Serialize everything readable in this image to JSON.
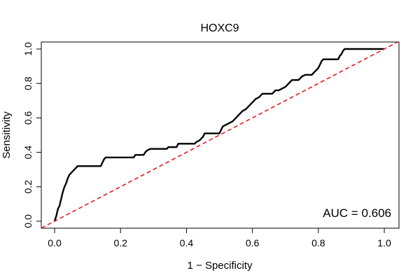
{
  "chart_data": {
    "type": "line",
    "title": "HOXC9",
    "xlabel": "1 − Specificity",
    "ylabel": "Sensitivity",
    "xlim": [
      0,
      1
    ],
    "ylim": [
      0,
      1
    ],
    "x_ticks": [
      {
        "value": 0.0,
        "label": "0.0"
      },
      {
        "value": 0.2,
        "label": "0.2"
      },
      {
        "value": 0.4,
        "label": "0.4"
      },
      {
        "value": 0.6,
        "label": "0.6"
      },
      {
        "value": 0.8,
        "label": "0.8"
      },
      {
        "value": 1.0,
        "label": "1.0"
      }
    ],
    "y_ticks": [
      {
        "value": 0.0,
        "label": "0.0"
      },
      {
        "value": 0.2,
        "label": "0.2"
      },
      {
        "value": 0.4,
        "label": "0.4"
      },
      {
        "value": 0.6,
        "label": "0.6"
      },
      {
        "value": 0.8,
        "label": "0.8"
      },
      {
        "value": 1.0,
        "label": "1.0"
      }
    ],
    "grid": false,
    "annotation": "AUC = 0.606",
    "series": [
      {
        "color": "#000000",
        "style": "solid",
        "points": [
          [
            0.0,
            0.0
          ],
          [
            0.005,
            0.03
          ],
          [
            0.01,
            0.07
          ],
          [
            0.015,
            0.09
          ],
          [
            0.02,
            0.13
          ],
          [
            0.025,
            0.17
          ],
          [
            0.03,
            0.2
          ],
          [
            0.035,
            0.22
          ],
          [
            0.04,
            0.25
          ],
          [
            0.045,
            0.27
          ],
          [
            0.05,
            0.28
          ],
          [
            0.055,
            0.29
          ],
          [
            0.06,
            0.3
          ],
          [
            0.065,
            0.31
          ],
          [
            0.07,
            0.32
          ],
          [
            0.14,
            0.32
          ],
          [
            0.145,
            0.34
          ],
          [
            0.15,
            0.36
          ],
          [
            0.155,
            0.37
          ],
          [
            0.24,
            0.37
          ],
          [
            0.245,
            0.385
          ],
          [
            0.27,
            0.385
          ],
          [
            0.275,
            0.4
          ],
          [
            0.28,
            0.41
          ],
          [
            0.29,
            0.42
          ],
          [
            0.34,
            0.42
          ],
          [
            0.345,
            0.43
          ],
          [
            0.37,
            0.43
          ],
          [
            0.375,
            0.45
          ],
          [
            0.425,
            0.45
          ],
          [
            0.43,
            0.46
          ],
          [
            0.44,
            0.47
          ],
          [
            0.445,
            0.48
          ],
          [
            0.45,
            0.49
          ],
          [
            0.455,
            0.51
          ],
          [
            0.5,
            0.51
          ],
          [
            0.505,
            0.53
          ],
          [
            0.51,
            0.55
          ],
          [
            0.52,
            0.56
          ],
          [
            0.53,
            0.57
          ],
          [
            0.54,
            0.58
          ],
          [
            0.55,
            0.6
          ],
          [
            0.56,
            0.62
          ],
          [
            0.565,
            0.63
          ],
          [
            0.57,
            0.64
          ],
          [
            0.58,
            0.65
          ],
          [
            0.585,
            0.66
          ],
          [
            0.59,
            0.67
          ],
          [
            0.595,
            0.68
          ],
          [
            0.6,
            0.69
          ],
          [
            0.605,
            0.7
          ],
          [
            0.61,
            0.71
          ],
          [
            0.62,
            0.72
          ],
          [
            0.625,
            0.73
          ],
          [
            0.63,
            0.74
          ],
          [
            0.66,
            0.74
          ],
          [
            0.665,
            0.75
          ],
          [
            0.67,
            0.76
          ],
          [
            0.68,
            0.76
          ],
          [
            0.69,
            0.77
          ],
          [
            0.7,
            0.78
          ],
          [
            0.705,
            0.79
          ],
          [
            0.71,
            0.8
          ],
          [
            0.715,
            0.81
          ],
          [
            0.72,
            0.82
          ],
          [
            0.74,
            0.82
          ],
          [
            0.745,
            0.83
          ],
          [
            0.75,
            0.84
          ],
          [
            0.76,
            0.85
          ],
          [
            0.78,
            0.85
          ],
          [
            0.785,
            0.86
          ],
          [
            0.79,
            0.87
          ],
          [
            0.795,
            0.88
          ],
          [
            0.8,
            0.89
          ],
          [
            0.805,
            0.91
          ],
          [
            0.81,
            0.93
          ],
          [
            0.815,
            0.94
          ],
          [
            0.86,
            0.94
          ],
          [
            0.865,
            0.96
          ],
          [
            0.87,
            0.97
          ],
          [
            0.875,
            0.99
          ],
          [
            0.88,
            1.0
          ],
          [
            1.0,
            1.0
          ]
        ]
      },
      {
        "color": "#e41a1c",
        "style": "dashed",
        "points": [
          [
            -0.04,
            -0.04
          ],
          [
            1.04,
            1.04
          ]
        ]
      }
    ]
  }
}
